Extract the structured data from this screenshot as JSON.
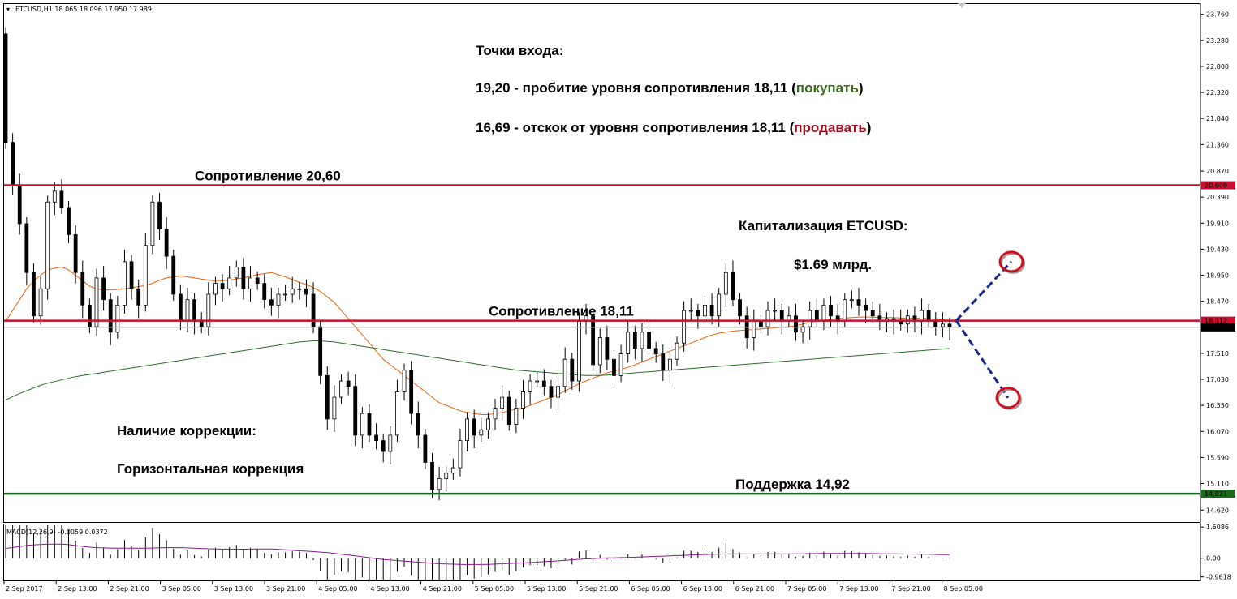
{
  "header": {
    "symbol_info": "ETCUSD,H1  18.065 18.096 17.950 17.989"
  },
  "macd_info": "MACD(12,26,9) -0.0059 0.0372",
  "colors": {
    "resistance": "#c8102e",
    "support": "#1a6a1a",
    "ma_fast": "#e8620c",
    "ma_slow": "#2a6e2a",
    "macd": "#8b1a8b",
    "forecast": "#1a2a8c",
    "buy": "#3a6e1e",
    "sell": "#a01020"
  },
  "annotations": {
    "entry_title": "Точки входа:",
    "buy_line": "19,20 - пробитие уровня сопротивления 18,11 (",
    "buy_word": "покупать",
    "buy_close": ")",
    "sell_line": "16,69 - отскок от уровня сопротивления 18,11 (",
    "sell_word": "продавать",
    "sell_close": ")",
    "cap_title": "Капитализация ETCUSD:",
    "cap_value": "$1.69 млрд.",
    "correction_title": "Наличие коррекции:",
    "correction_type": "Горизонтальная коррекция"
  },
  "levels": [
    {
      "label": "Сопротивление 20,60",
      "value": 20.609,
      "tag": "20.609",
      "color": "#c8102e"
    },
    {
      "label": "Сопротивление 18,11",
      "value": 18.112,
      "tag": "18.112",
      "color": "#c8102e"
    },
    {
      "label": "Поддержка 14,92",
      "value": 14.921,
      "tag": "14.921",
      "color": "#1a6a1a"
    }
  ],
  "current_price": {
    "value": 17.989,
    "tag": "17.989"
  },
  "chart_data": {
    "type": "candlestick",
    "title": "ETCUSD,H1",
    "price_axis": {
      "ylim": [
        14.4,
        23.95
      ],
      "ticks": [
        23.76,
        23.28,
        22.8,
        22.32,
        21.84,
        21.36,
        20.87,
        20.39,
        19.91,
        19.43,
        18.95,
        18.47,
        17.51,
        17.03,
        16.55,
        16.07,
        15.59,
        15.11,
        14.62
      ],
      "tick_labels": [
        "23.760",
        "23.280",
        "22.800",
        "22.320",
        "21.840",
        "21.360",
        "20.870",
        "20.390",
        "19.910",
        "19.430",
        "18.950",
        "18.470",
        "17.510",
        "17.030",
        "16.550",
        "16.070",
        "15.590",
        "15.110",
        "14.620"
      ]
    },
    "time_axis": {
      "labels": [
        "2 Sep 2017",
        "2 Sep 13:00",
        "2 Sep 21:00",
        "3 Sep 05:00",
        "3 Sep 13:00",
        "3 Sep 21:00",
        "4 Sep 05:00",
        "4 Sep 13:00",
        "4 Sep 21:00",
        "5 Sep 05:00",
        "5 Sep 13:00",
        "5 Sep 21:00",
        "6 Sep 05:00",
        "6 Sep 13:00",
        "6 Sep 21:00",
        "7 Sep 05:00",
        "7 Sep 13:00",
        "7 Sep 21:00",
        "8 Sep 05:00"
      ]
    },
    "close": [
      21.4,
      20.6,
      19.9,
      19.0,
      18.2,
      18.7,
      20.3,
      20.5,
      20.2,
      19.7,
      19.0,
      18.4,
      18.0,
      18.9,
      18.5,
      17.9,
      18.4,
      19.2,
      18.7,
      18.4,
      19.5,
      20.3,
      19.8,
      19.3,
      18.6,
      18.1,
      18.5,
      18.1,
      18.0,
      18.6,
      18.8,
      18.7,
      18.9,
      19.1,
      18.7,
      18.9,
      18.8,
      18.5,
      18.4,
      18.6,
      18.6,
      18.7,
      18.7,
      18.6,
      18.0,
      17.1,
      16.3,
      16.7,
      17.0,
      16.9,
      16.0,
      16.4,
      16.0,
      15.9,
      15.7,
      16.0,
      16.8,
      17.2,
      16.4,
      16.0,
      15.5,
      15.0,
      15.2,
      15.3,
      15.4,
      15.9,
      16.3,
      16.0,
      16.1,
      16.3,
      16.5,
      16.7,
      16.2,
      16.5,
      16.8,
      17.0,
      17.0,
      16.9,
      16.7,
      16.9,
      17.4,
      17.0,
      18.1,
      18.2,
      17.3,
      17.8,
      17.4,
      17.1,
      17.5,
      17.9,
      17.6,
      17.9,
      17.6,
      17.5,
      17.2,
      17.4,
      17.7,
      18.3,
      18.3,
      18.2,
      18.4,
      18.2,
      18.6,
      19.0,
      18.5,
      18.2,
      17.8,
      18.1,
      18.0,
      18.3,
      18.3,
      18.1,
      18.2,
      17.9,
      18.0,
      18.3,
      18.1,
      18.4,
      18.2,
      18.1,
      18.5,
      18.5,
      18.4,
      18.3,
      18.2,
      18.1,
      18.15,
      18.1,
      18.05,
      18.2,
      18.1,
      18.3,
      18.1,
      18.0,
      18.05,
      17.989
    ],
    "series": [
      {
        "name": "MA fast",
        "values": [
          18.1,
          18.3,
          18.5,
          18.7,
          18.85,
          18.95,
          19.05,
          19.08,
          19.1,
          19.05,
          18.95,
          18.85,
          18.75,
          18.7,
          18.68,
          18.68,
          18.69,
          18.7,
          18.72,
          18.74,
          18.76,
          18.8,
          18.86,
          18.9,
          18.92,
          18.94,
          18.92,
          18.9,
          18.88,
          18.86,
          18.85,
          18.85,
          18.86,
          18.88,
          18.9,
          18.93,
          18.96,
          18.98,
          19.0,
          18.96,
          18.92,
          18.87,
          18.82,
          18.78,
          18.72,
          18.65,
          18.55,
          18.45,
          18.3,
          18.15,
          18.0,
          17.85,
          17.7,
          17.55,
          17.4,
          17.3,
          17.2,
          17.1,
          17.0,
          16.9,
          16.8,
          16.7,
          16.6,
          16.55,
          16.5,
          16.45,
          16.42,
          16.4,
          16.38,
          16.38,
          16.4,
          16.42,
          16.45,
          16.48,
          16.5,
          16.55,
          16.6,
          16.65,
          16.7,
          16.75,
          16.82,
          16.88,
          16.95,
          17.0,
          17.05,
          17.1,
          17.15,
          17.18,
          17.22,
          17.25,
          17.3,
          17.35,
          17.4,
          17.45,
          17.5,
          17.55,
          17.6,
          17.65,
          17.7,
          17.75,
          17.8,
          17.85,
          17.88,
          17.9,
          17.92,
          17.93,
          17.94,
          17.95,
          17.96,
          17.97,
          17.98,
          17.99,
          18.0,
          18.02,
          18.05,
          18.08,
          18.1,
          18.12,
          18.14,
          18.15,
          18.16,
          18.17,
          18.18,
          18.18,
          18.18,
          18.17,
          18.17,
          18.17,
          18.16,
          18.16,
          18.16,
          18.16,
          18.15,
          18.14,
          18.13,
          18.12
        ]
      },
      {
        "name": "MA slow",
        "values": [
          16.65,
          16.71,
          16.77,
          16.82,
          16.87,
          16.92,
          16.96,
          16.99,
          17.02,
          17.05,
          17.08,
          17.1,
          17.12,
          17.14,
          17.16,
          17.18,
          17.2,
          17.22,
          17.24,
          17.26,
          17.28,
          17.3,
          17.32,
          17.34,
          17.36,
          17.38,
          17.4,
          17.42,
          17.44,
          17.46,
          17.48,
          17.5,
          17.52,
          17.54,
          17.56,
          17.58,
          17.6,
          17.62,
          17.64,
          17.66,
          17.68,
          17.7,
          17.72,
          17.73,
          17.74,
          17.74,
          17.73,
          17.72,
          17.7,
          17.68,
          17.66,
          17.64,
          17.62,
          17.6,
          17.58,
          17.56,
          17.54,
          17.52,
          17.5,
          17.48,
          17.46,
          17.44,
          17.42,
          17.4,
          17.38,
          17.36,
          17.34,
          17.32,
          17.3,
          17.28,
          17.26,
          17.24,
          17.22,
          17.2,
          17.19,
          17.18,
          17.17,
          17.16,
          17.15,
          17.14,
          17.13,
          17.12,
          17.11,
          17.1,
          17.1,
          17.1,
          17.11,
          17.12,
          17.13,
          17.14,
          17.15,
          17.16,
          17.17,
          17.18,
          17.19,
          17.2,
          17.21,
          17.22,
          17.23,
          17.24,
          17.25,
          17.26,
          17.27,
          17.28,
          17.29,
          17.3,
          17.31,
          17.32,
          17.33,
          17.34,
          17.35,
          17.36,
          17.37,
          17.38,
          17.39,
          17.4,
          17.41,
          17.42,
          17.43,
          17.44,
          17.45,
          17.46,
          17.47,
          17.48,
          17.49,
          17.5,
          17.51,
          17.52,
          17.53,
          17.54,
          17.55,
          17.56,
          17.57,
          17.58,
          17.59,
          17.6
        ]
      }
    ],
    "forecast": {
      "start": 18.112,
      "buy_target": 19.2,
      "sell_target": 16.69
    },
    "macd": {
      "ylim": [
        -1.1,
        1.7
      ],
      "ticks": [
        1.6086,
        0.0,
        -0.9618
      ],
      "tick_labels": [
        "1.6086",
        "0.00",
        "-0.9618"
      ]
    }
  }
}
